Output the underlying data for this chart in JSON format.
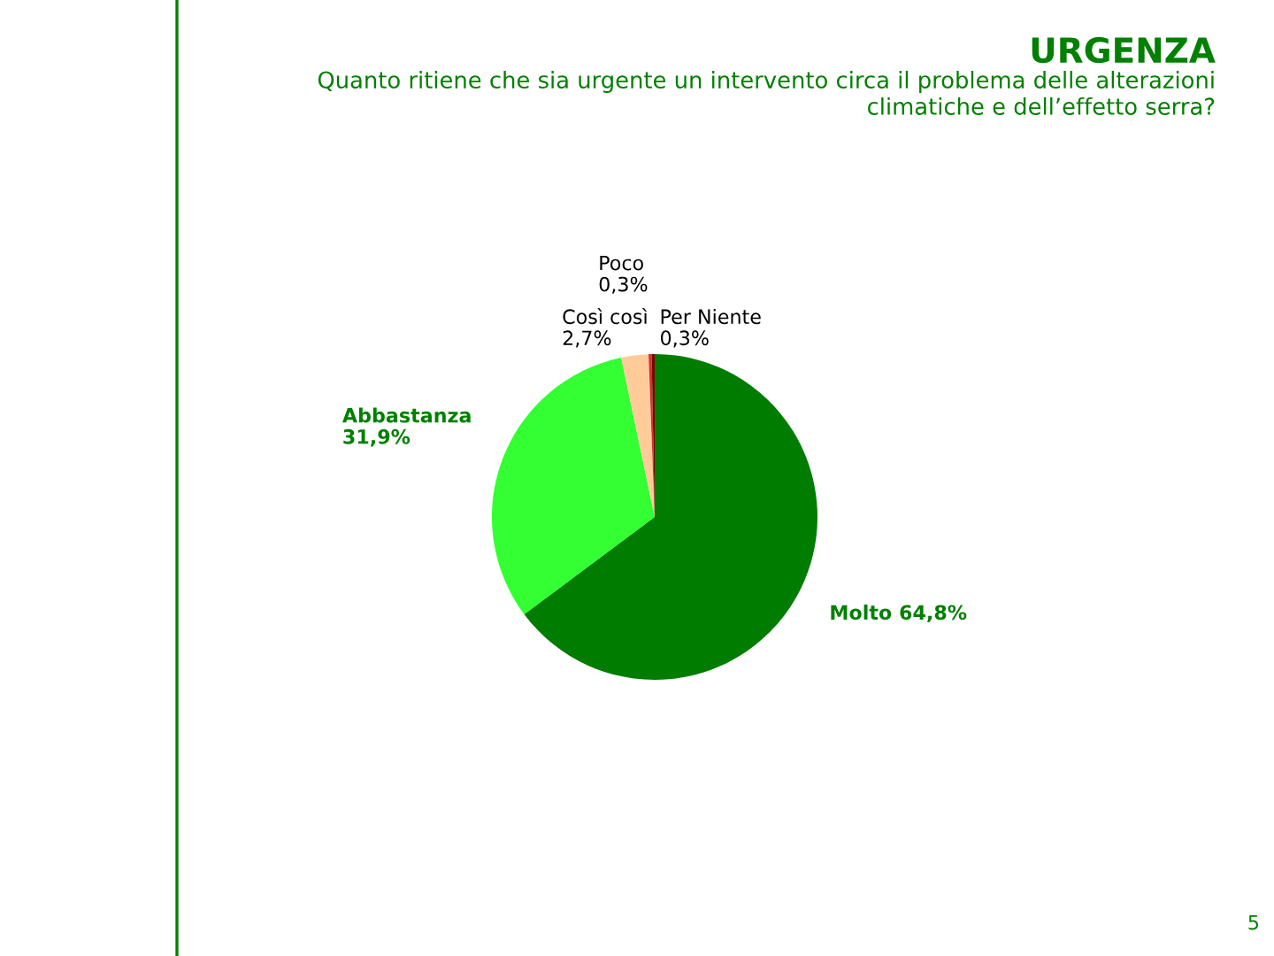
{
  "chart_data": {
    "type": "pie",
    "title": "URGENZA",
    "subtitle": "Quanto ritiene che sia urgente un intervento circa il problema delle alterazioni\nclimatiche e dell’effetto serra?",
    "categories": [
      "Molto",
      "Abbastanza",
      "Così così",
      "Poco",
      "Per Niente"
    ],
    "values": [
      64.8,
      31.9,
      2.7,
      0.3,
      0.3
    ],
    "value_labels": [
      "64,8%",
      "31,9%",
      "2,7%",
      "0,3%",
      "0,3%"
    ],
    "colors": [
      "#007c00",
      "#33ff33",
      "#ffcc99",
      "#cc3333",
      "#800000"
    ],
    "annotations": [
      "5"
    ]
  }
}
